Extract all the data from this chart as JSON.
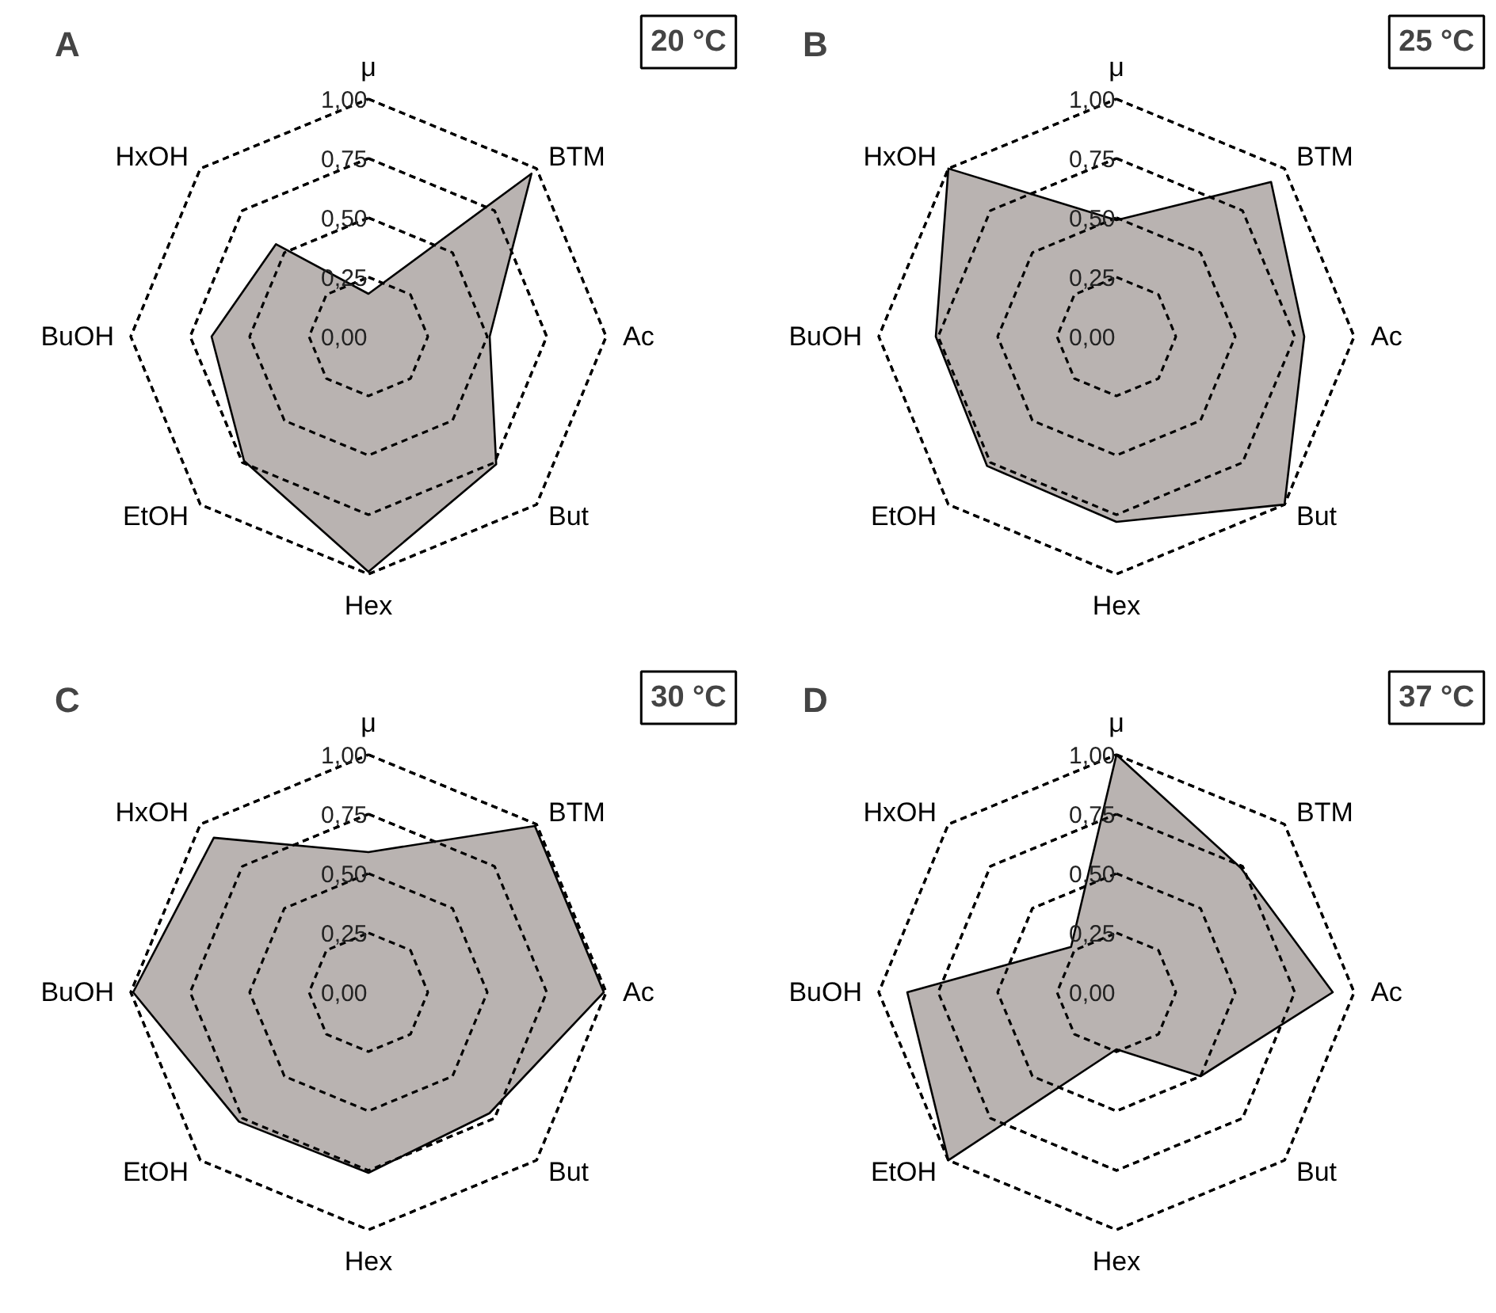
{
  "chart_data": [
    {
      "type": "radar",
      "title": "A",
      "annotations": [
        "20 °C"
      ],
      "categories": [
        "μ",
        "BTM",
        "Ac",
        "But",
        "Hex",
        "EtOH",
        "BuOH",
        "HxOH"
      ],
      "ylim": [
        0,
        1
      ],
      "yticks": [
        {
          "value": 0,
          "label": "0,00"
        },
        {
          "value": 0.25,
          "label": "0,25"
        },
        {
          "value": 0.5,
          "label": "0,50"
        },
        {
          "value": 0.75,
          "label": "0,75"
        },
        {
          "value": 1,
          "label": "1,00"
        }
      ],
      "grid": true,
      "series": [
        {
          "color": "#b9b3b1",
          "values": [
            0.18,
            0.97,
            0.51,
            0.76,
            0.99,
            0.74,
            0.66,
            0.55
          ]
        }
      ]
    },
    {
      "type": "radar",
      "title": "B",
      "annotations": [
        "25 °C"
      ],
      "categories": [
        "μ",
        "BTM",
        "Ac",
        "But",
        "Hex",
        "EtOH",
        "BuOH",
        "HxOH"
      ],
      "ylim": [
        0,
        1
      ],
      "yticks": [
        {
          "value": 0,
          "label": "0,00"
        },
        {
          "value": 0.25,
          "label": "0,25"
        },
        {
          "value": 0.5,
          "label": "0,50"
        },
        {
          "value": 0.75,
          "label": "0,75"
        },
        {
          "value": 1,
          "label": "1,00"
        }
      ],
      "grid": true,
      "series": [
        {
          "color": "#b9b3b1",
          "values": [
            0.49,
            0.92,
            0.79,
            1.0,
            0.78,
            0.77,
            0.76,
            1.0
          ]
        }
      ]
    },
    {
      "type": "radar",
      "title": "C",
      "annotations": [
        "30 °C"
      ],
      "categories": [
        "μ",
        "BTM",
        "Ac",
        "But",
        "Hex",
        "EtOH",
        "BuOH",
        "HxOH"
      ],
      "ylim": [
        0,
        1
      ],
      "yticks": [
        {
          "value": 0,
          "label": "0,00"
        },
        {
          "value": 0.25,
          "label": "0,25"
        },
        {
          "value": 0.5,
          "label": "0,50"
        },
        {
          "value": 0.75,
          "label": "0,75"
        },
        {
          "value": 1,
          "label": "1,00"
        }
      ],
      "grid": true,
      "series": [
        {
          "color": "#b9b3b1",
          "values": [
            0.59,
            0.99,
            0.99,
            0.72,
            0.76,
            0.77,
            0.99,
            0.92
          ]
        }
      ]
    },
    {
      "type": "radar",
      "title": "D",
      "annotations": [
        "37 °C"
      ],
      "categories": [
        "μ",
        "BTM",
        "Ac",
        "But",
        "Hex",
        "EtOH",
        "BuOH",
        "HxOH"
      ],
      "ylim": [
        0,
        1
      ],
      "yticks": [
        {
          "value": 0,
          "label": "0,00"
        },
        {
          "value": 0.25,
          "label": "0,25"
        },
        {
          "value": 0.5,
          "label": "0,50"
        },
        {
          "value": 0.75,
          "label": "0,75"
        },
        {
          "value": 1,
          "label": "1,00"
        }
      ],
      "grid": true,
      "series": [
        {
          "color": "#b9b3b1",
          "values": [
            1.0,
            0.74,
            0.91,
            0.5,
            0.24,
            1.0,
            0.88,
            0.27
          ]
        }
      ]
    }
  ]
}
